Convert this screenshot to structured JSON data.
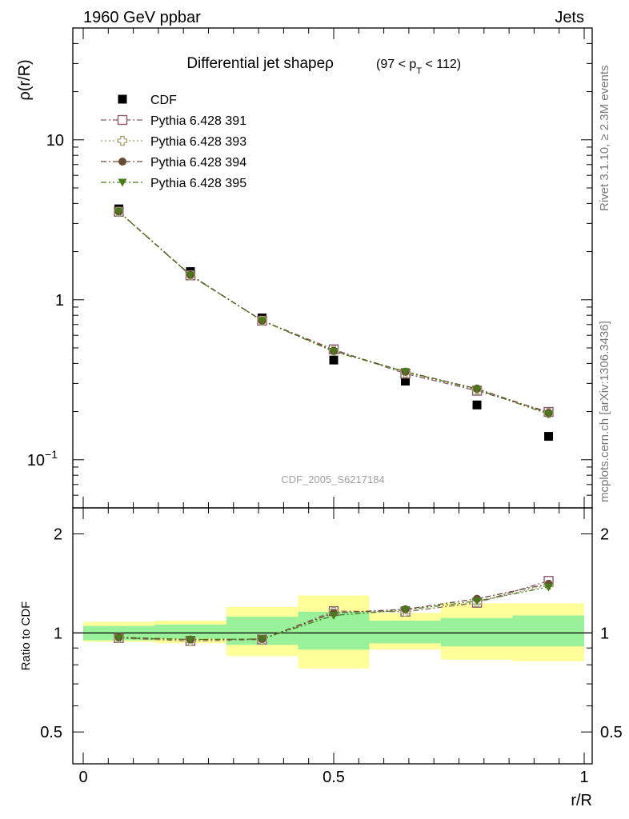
{
  "header": {
    "left": "1960 GeV ppbar",
    "right": "Jets"
  },
  "side_labels": {
    "rivet": "Rivet 3.1.10, ≥ 2.3M events",
    "mcplots": "mcplots.cern.ch [arXiv:1306.3436]"
  },
  "chart_data": [
    {
      "type": "scatter",
      "panel": "main",
      "title_main": "Differential jet shapeρ",
      "title_sub_prefix": "(97 < p",
      "title_sub_index": "T",
      "title_sub_suffix": " < 112)",
      "ylabel": "ρ(r/R)",
      "xlabel": "r/R",
      "yscale": "log",
      "xlim": [
        0,
        1
      ],
      "ylim": [
        0.05,
        50
      ],
      "watermark": "CDF_2005_S6217184",
      "yticks": [
        {
          "value": 0.1,
          "base": "10",
          "exp": "−1"
        },
        {
          "value": 1,
          "label": "1"
        },
        {
          "value": 10,
          "label": "10"
        }
      ],
      "x": [
        0.071,
        0.214,
        0.357,
        0.5,
        0.643,
        0.786,
        0.929
      ],
      "x_edges": [
        0,
        0.143,
        0.286,
        0.429,
        0.571,
        0.714,
        0.857,
        1.0
      ],
      "series": [
        {
          "name": "CDF",
          "color": "#000000",
          "marker": "filled-square",
          "line": "none",
          "values": [
            3.7,
            1.5,
            0.77,
            0.42,
            0.31,
            0.22,
            0.14
          ]
        },
        {
          "name": "Pythia 6.428 391",
          "color": "#8b5a6b",
          "marker": "open-square",
          "line": "dashdot",
          "values": [
            3.55,
            1.42,
            0.74,
            0.49,
            0.345,
            0.27,
            0.199
          ]
        },
        {
          "name": "Pythia 6.428 393",
          "color": "#9c9c6a",
          "marker": "open-cross",
          "line": "dotted",
          "values": [
            3.55,
            1.42,
            0.74,
            0.485,
            0.35,
            0.275,
            0.196
          ]
        },
        {
          "name": "Pythia 6.428 394",
          "color": "#6b4a36",
          "marker": "filled-circle",
          "line": "dashdot",
          "values": [
            3.56,
            1.43,
            0.74,
            0.48,
            0.355,
            0.278,
            0.196
          ]
        },
        {
          "name": "Pythia 6.428 395",
          "color": "#4a7a1a",
          "marker": "filled-triangle-down",
          "line": "dashdotdot",
          "values": [
            3.55,
            1.42,
            0.74,
            0.475,
            0.355,
            0.275,
            0.193
          ]
        }
      ]
    },
    {
      "type": "line",
      "panel": "ratio",
      "ylabel": "Ratio to CDF",
      "xlabel": "r/R",
      "yscale": "log",
      "xlim": [
        0,
        1
      ],
      "ylim": [
        0.4,
        2.4
      ],
      "yticks": [
        {
          "value": 0.5,
          "label": "0.5"
        },
        {
          "value": 1,
          "label": "1"
        },
        {
          "value": 2,
          "label": "2"
        }
      ],
      "xticks": [
        {
          "value": 0,
          "label": "0"
        },
        {
          "value": 0.5,
          "label": "0.5"
        },
        {
          "value": 1,
          "label": "1"
        }
      ],
      "band_inner": [
        [
          0.95,
          1.05
        ],
        [
          0.96,
          1.06
        ],
        [
          0.92,
          1.12
        ],
        [
          0.89,
          1.16
        ],
        [
          0.93,
          1.09
        ],
        [
          0.91,
          1.11
        ],
        [
          0.91,
          1.13
        ]
      ],
      "band_outer": [
        [
          0.94,
          1.08
        ],
        [
          0.93,
          1.09
        ],
        [
          0.85,
          1.2
        ],
        [
          0.78,
          1.3
        ],
        [
          0.89,
          1.15
        ],
        [
          0.83,
          1.23
        ],
        [
          0.82,
          1.23
        ]
      ],
      "band_inner_color": "#99f299",
      "band_outer_color": "#ffff99",
      "x": [
        0.071,
        0.214,
        0.357,
        0.5,
        0.643,
        0.786,
        0.929
      ],
      "series": [
        {
          "name": "Pythia 6.428 391",
          "color": "#8b5a6b",
          "marker": "open-square",
          "line": "dashdot",
          "values": [
            0.965,
            0.945,
            0.955,
            1.165,
            1.16,
            1.235,
            1.44
          ]
        },
        {
          "name": "Pythia 6.428 393",
          "color": "#9c9c6a",
          "marker": "open-cross",
          "line": "dotted",
          "values": [
            0.965,
            0.945,
            0.955,
            1.16,
            1.16,
            1.24,
            1.4
          ]
        },
        {
          "name": "Pythia 6.428 394",
          "color": "#6b4a36",
          "marker": "filled-circle",
          "line": "dashdot",
          "values": [
            0.97,
            0.955,
            0.958,
            1.15,
            1.18,
            1.27,
            1.41
          ]
        },
        {
          "name": "Pythia 6.428 395",
          "color": "#4a7a1a",
          "marker": "filled-triangle-down",
          "line": "dashdotdot",
          "values": [
            0.965,
            0.955,
            0.958,
            1.13,
            1.175,
            1.25,
            1.38
          ]
        }
      ]
    }
  ]
}
